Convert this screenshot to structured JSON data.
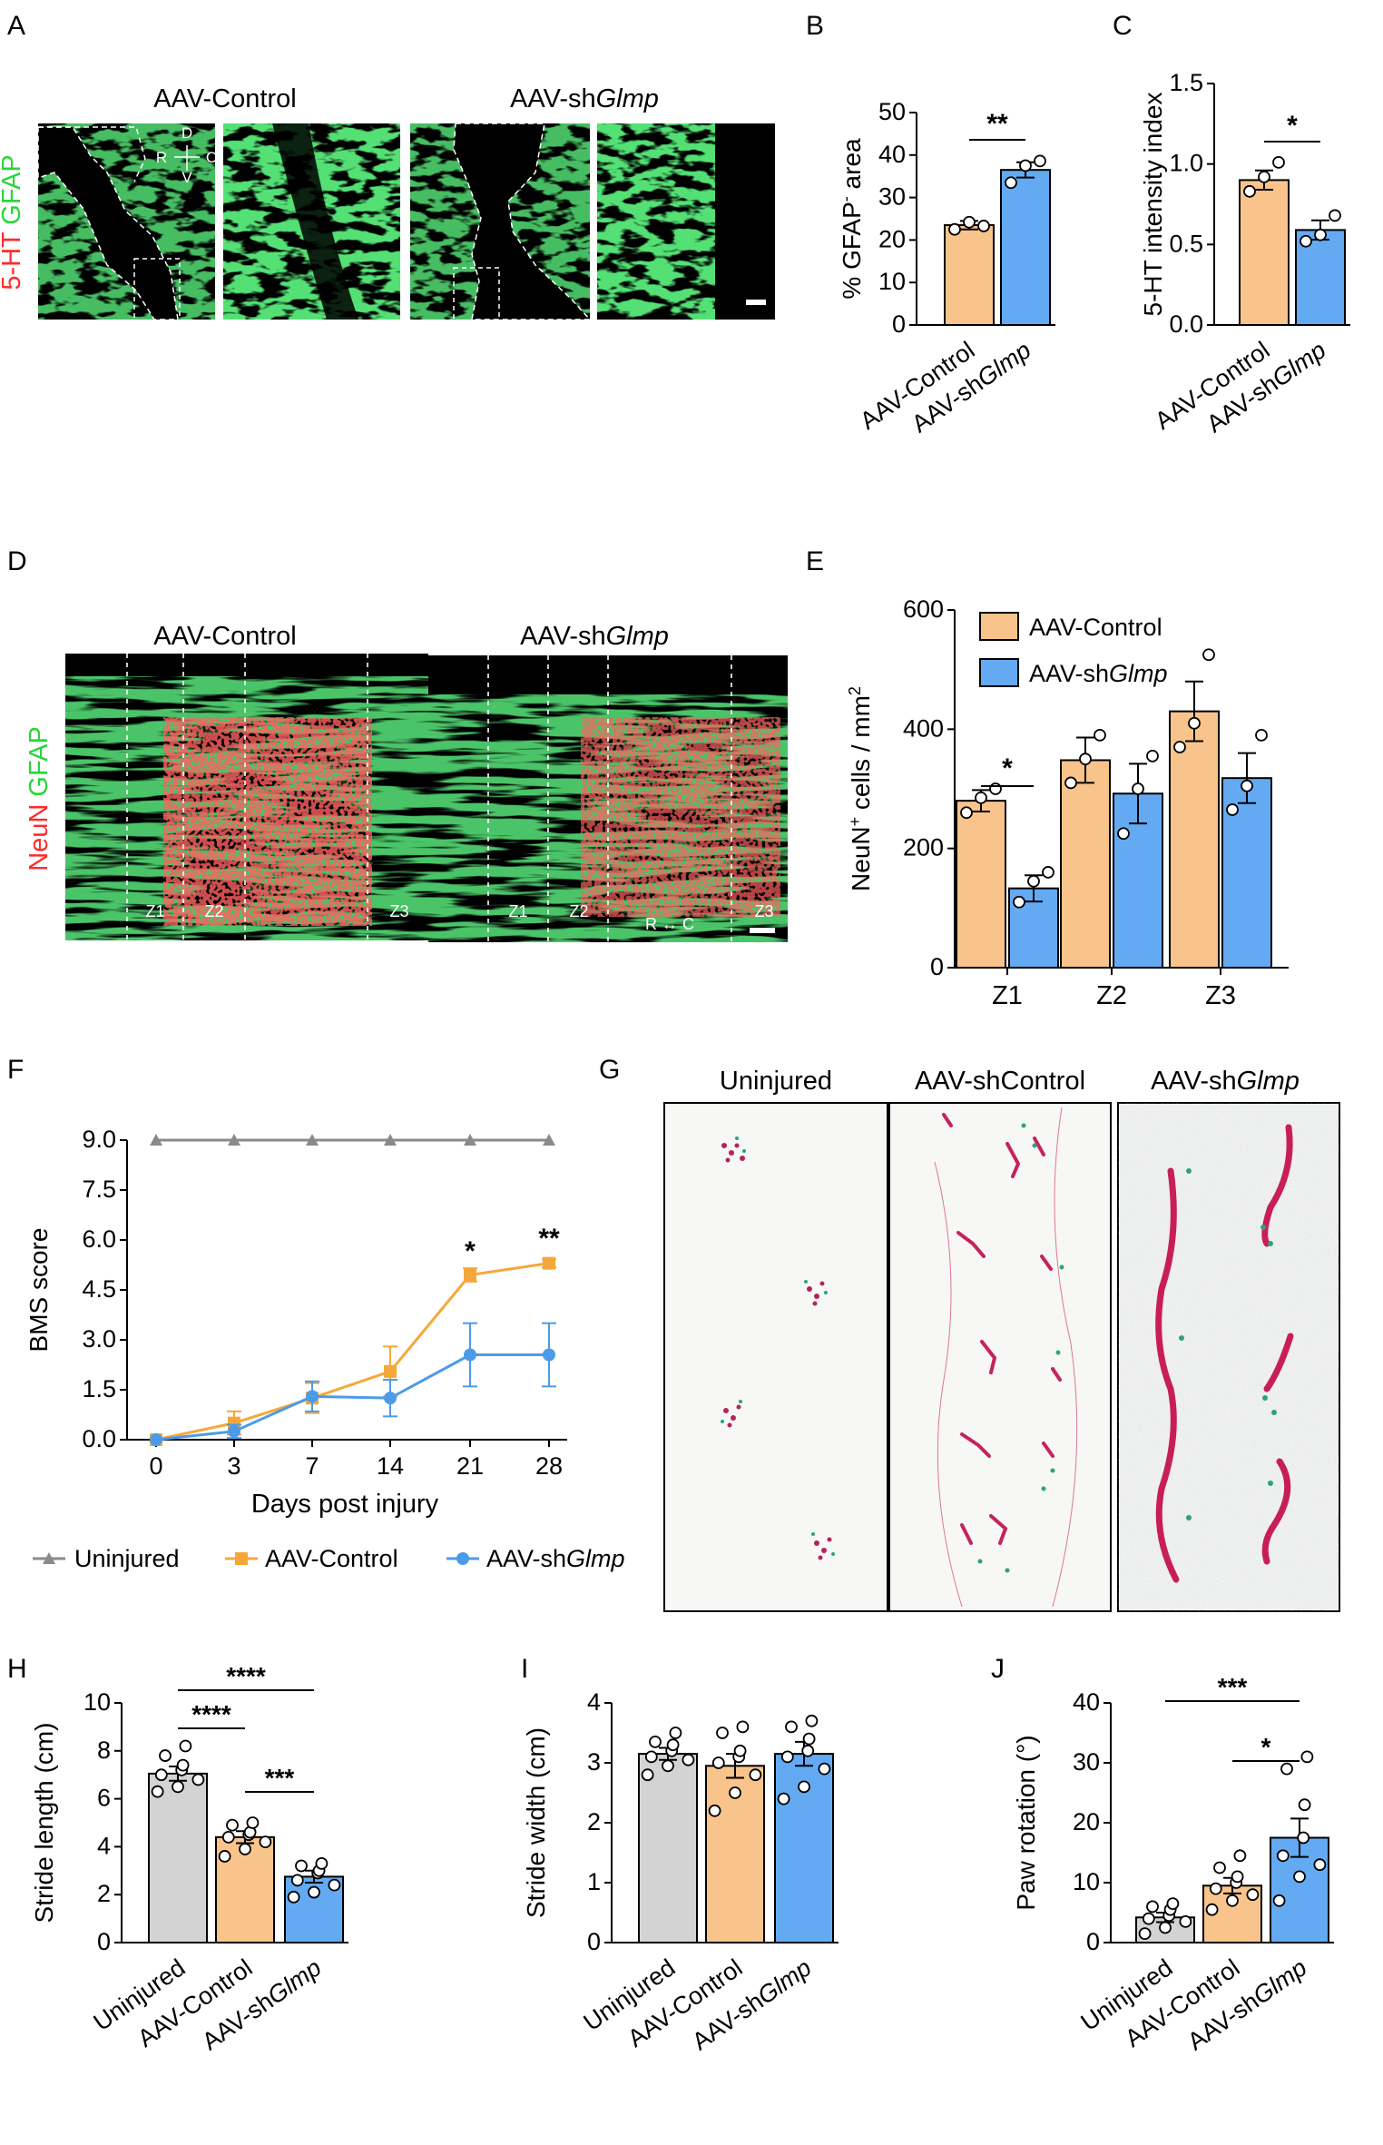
{
  "colors": {
    "orange": "#f9c48b",
    "orange_line": "#f5a83a",
    "blue": "#63aaf3",
    "blue_line": "#4c9be8",
    "gray": "#d3d3d3",
    "gray_line": "#8a8a8a",
    "gfap": "#27d63b",
    "nuen": "#ff2a2a",
    "magenta": "#c8235a",
    "teal": "#2ea37a"
  },
  "panels": {
    "A": {
      "letter": "A",
      "left_title": "AAV-Control",
      "right_title_plain": "AAV-sh",
      "right_title_italic": "Glmp",
      "stain_red": "5-HT",
      "stain_green": " GFAP",
      "compass_d": "D",
      "compass_r": "R",
      "compass_c": "C",
      "compass_v": "V"
    },
    "D": {
      "letter": "D",
      "left_title": "AAV-Control",
      "right_title_plain": "AAV-sh",
      "right_title_italic": "Glmp",
      "stain_red": "NeuN",
      "stain_green": " GFAP",
      "z1": "Z1",
      "z2": "Z2",
      "z3": "Z3",
      "rc": "R ↔ C"
    },
    "G": {
      "letter": "G",
      "titles": [
        "Uninjured",
        "AAV-shControl"
      ],
      "third_plain": "AAV-sh",
      "third_italic": "Glmp"
    }
  },
  "group_labels": {
    "control": "AAV-Control",
    "sh_plain": "AAV-sh",
    "sh_italic": "Glmp",
    "uninjured": "Uninjured"
  },
  "chart_data": [
    {
      "id": "B",
      "letter": "B",
      "type": "bar",
      "ylabel_pre": "% GFAP",
      "ylabel_sup": "-",
      "ylabel_post": " area",
      "ylim": [
        0,
        50
      ],
      "yticks": [
        "0",
        "10",
        "20",
        "30",
        "40",
        "50"
      ],
      "categories": [
        "AAV-Control",
        "AAV-shGlmp"
      ],
      "values": [
        23.5,
        36.5
      ],
      "errors": [
        1,
        1.8
      ],
      "points": [
        [
          22.5,
          24.2,
          23.3
        ],
        [
          33.5,
          37.5,
          38.6
        ]
      ],
      "significance": "**"
    },
    {
      "id": "C",
      "letter": "C",
      "type": "bar",
      "ylabel": "5-HT intensity index",
      "ylim": [
        0,
        1.5
      ],
      "yticks": [
        "0.0",
        "0.5",
        "1.0",
        "1.5"
      ],
      "categories": [
        "AAV-Control",
        "AAV-shGlmp"
      ],
      "values": [
        0.9,
        0.59
      ],
      "errors": [
        0.06,
        0.06
      ],
      "points": [
        [
          0.83,
          0.92,
          1.01
        ],
        [
          0.52,
          0.56,
          0.68
        ]
      ],
      "significance": "*"
    },
    {
      "id": "E",
      "letter": "E",
      "type": "bar",
      "ylabel_pre": "NeuN",
      "ylabel_sup": "+",
      "ylabel_post": " cells / mm",
      "ylabel_sup2": "2",
      "ylim": [
        0,
        600
      ],
      "yticks": [
        "0",
        "200",
        "400",
        "600"
      ],
      "categories": [
        "Z1",
        "Z2",
        "Z3"
      ],
      "series": [
        {
          "name": "AAV-Control",
          "values": [
            280,
            348,
            430
          ],
          "errors": [
            18,
            38,
            50
          ],
          "points": [
            [
              260,
              285,
              300
            ],
            [
              310,
              350,
              390
            ],
            [
              370,
              410,
              525
            ]
          ]
        },
        {
          "name": "AAV-shGlmp",
          "values": [
            133,
            292,
            318
          ],
          "errors": [
            22,
            50,
            42
          ],
          "points": [
            [
              110,
              145,
              160
            ],
            [
              225,
              300,
              355
            ],
            [
              265,
              305,
              390
            ]
          ]
        }
      ],
      "legend": [
        "AAV-Control",
        "AAV-sh"
      ],
      "legend_italic": "Glmp",
      "significance": "*"
    },
    {
      "id": "F",
      "letter": "F",
      "type": "line",
      "ylabel": "BMS score",
      "xlabel": "Days post injury",
      "ylim": [
        0,
        9
      ],
      "yticks": [
        "0.0",
        "1.5",
        "3.0",
        "4.5",
        "6.0",
        "7.5",
        "9.0"
      ],
      "x": [
        "0",
        "3",
        "7",
        "14",
        "21",
        "28"
      ],
      "series": [
        {
          "name": "Uninjured",
          "values": [
            9,
            9,
            9,
            9,
            9,
            9
          ],
          "errors": [
            0,
            0,
            0,
            0,
            0,
            0
          ]
        },
        {
          "name": "AAV-Control",
          "values": [
            0,
            0.5,
            1.25,
            2.05,
            4.95,
            5.3
          ],
          "errors": [
            0,
            0.35,
            0.45,
            0.75,
            0.2,
            0.12
          ]
        },
        {
          "name": "AAV-shGlmp",
          "values": [
            0,
            0.25,
            1.3,
            1.25,
            2.55,
            2.55
          ],
          "errors": [
            0,
            0.2,
            0.45,
            0.55,
            0.95,
            0.95
          ]
        }
      ],
      "annot_21": "*",
      "annot_28": "**",
      "legend": [
        "Uninjured",
        "AAV-Control",
        "AAV-sh"
      ],
      "legend_italic": "Glmp"
    },
    {
      "id": "H",
      "letter": "H",
      "type": "bar",
      "ylabel": "Stride length (cm)",
      "ylim": [
        0,
        10
      ],
      "yticks": [
        "0",
        "2",
        "4",
        "6",
        "8",
        "10"
      ],
      "categories": [
        "Uninjured",
        "AAV-Control",
        "AAV-shGlmp"
      ],
      "values": [
        7.05,
        4.4,
        2.75
      ],
      "errors": [
        0.3,
        0.25,
        0.25
      ],
      "points": [
        [
          6.3,
          6.5,
          6.8,
          7.0,
          7.2,
          7.4,
          7.8,
          8.2
        ],
        [
          3.6,
          3.9,
          4.2,
          4.4,
          4.5,
          4.6,
          4.9,
          5.0
        ],
        [
          1.9,
          2.1,
          2.4,
          2.6,
          2.9,
          3.0,
          3.2,
          3.3
        ]
      ],
      "sig": [
        "****",
        "****",
        "***"
      ]
    },
    {
      "id": "I",
      "letter": "I",
      "type": "bar",
      "ylabel": "Stride width (cm)",
      "ylim": [
        0,
        4
      ],
      "yticks": [
        "0",
        "1",
        "2",
        "3",
        "4"
      ],
      "categories": [
        "Uninjured",
        "AAV-Control",
        "AAV-shGlmp"
      ],
      "values": [
        3.15,
        2.95,
        3.15
      ],
      "errors": [
        0.1,
        0.2,
        0.2
      ],
      "points": [
        [
          2.8,
          2.95,
          3.05,
          3.1,
          3.2,
          3.3,
          3.35,
          3.5
        ],
        [
          2.2,
          2.5,
          2.8,
          3.0,
          3.1,
          3.2,
          3.5,
          3.6
        ],
        [
          2.4,
          2.6,
          2.9,
          3.1,
          3.2,
          3.4,
          3.6,
          3.7
        ]
      ]
    },
    {
      "id": "J",
      "letter": "J",
      "type": "bar",
      "ylabel": "Paw rotation (°)",
      "ylim": [
        0,
        40
      ],
      "yticks": [
        "0",
        "10",
        "20",
        "30",
        "40"
      ],
      "categories": [
        "Uninjured",
        "AAV-Control",
        "AAV-shGlmp"
      ],
      "values": [
        4.2,
        9.5,
        17.5
      ],
      "errors": [
        0.8,
        1.3,
        3.2
      ],
      "points": [
        [
          1.5,
          2.5,
          3.5,
          4.0,
          4.5,
          5.5,
          6.0,
          6.5
        ],
        [
          5.5,
          7.0,
          8.0,
          9.0,
          10.0,
          11.0,
          12.5,
          14.5
        ],
        [
          7.0,
          11.0,
          13.0,
          14.5,
          17.5,
          23.0,
          29.0,
          31.0
        ]
      ],
      "sig": [
        "***",
        "*"
      ]
    }
  ]
}
